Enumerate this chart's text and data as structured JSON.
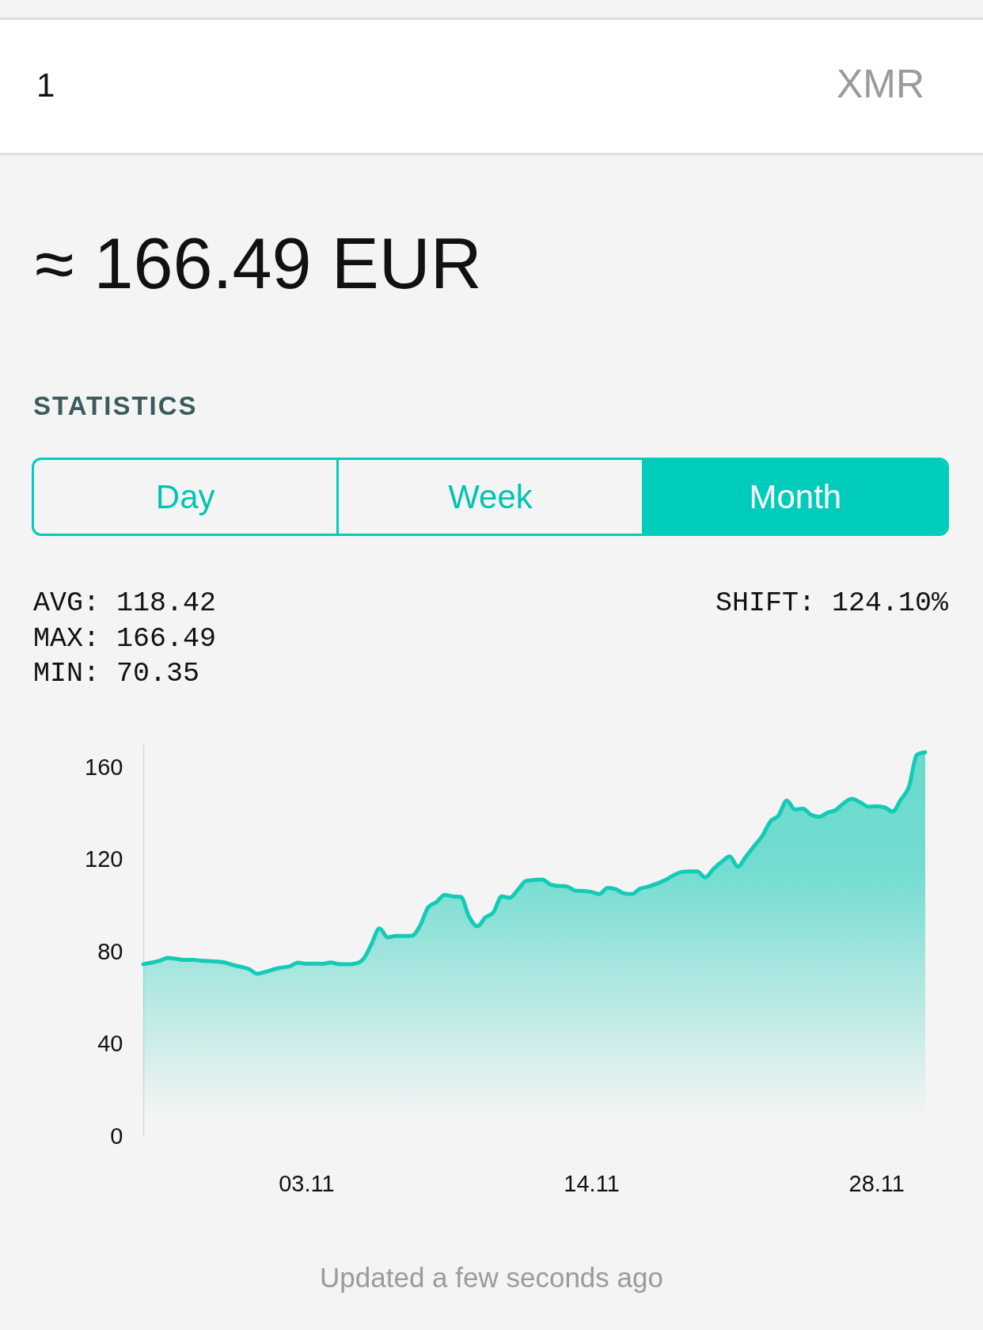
{
  "chart_data": {
    "type": "area",
    "title": "≈ 166.49 EUR",
    "subtitle": "STATISTICS",
    "categories": [
      null,
      null,
      null,
      null,
      null,
      null,
      null,
      null,
      null,
      null,
      null,
      null,
      null,
      null,
      null,
      null,
      null,
      null,
      null,
      null,
      "03.11",
      null,
      null,
      null,
      null,
      null,
      null,
      null,
      null,
      null,
      null,
      null,
      null,
      null,
      null,
      null,
      null,
      null,
      null,
      null,
      null,
      null,
      null,
      null,
      null,
      null,
      null,
      null,
      null,
      null,
      null,
      null,
      null,
      null,
      null,
      "14.11",
      null,
      null,
      null,
      null,
      null,
      null,
      null,
      null,
      null,
      null,
      null,
      null,
      null,
      null,
      null,
      null,
      null,
      null,
      null,
      null,
      null,
      null,
      null,
      null,
      null,
      null,
      null,
      null,
      null,
      null,
      null,
      null,
      null,
      null,
      "28.11",
      null,
      null,
      null,
      null,
      null,
      null
    ],
    "series": [
      {
        "color": "#14cbb6",
        "values": [
          74.5,
          75.2,
          76.0,
          77.3,
          76.9,
          76.4,
          76.5,
          76.1,
          75.9,
          75.7,
          75.3,
          74.2,
          73.4,
          72.4,
          70.4,
          71.2,
          72.3,
          73.1,
          73.6,
          75.2,
          74.7,
          74.8,
          74.7,
          75.3,
          74.6,
          74.5,
          74.8,
          76.7,
          83.1,
          90.1,
          86.2,
          86.8,
          86.8,
          86.9,
          91.4,
          99.3,
          101.5,
          104.6,
          104.0,
          103.7,
          95.2,
          91.0,
          94.8,
          97.1,
          104.0,
          103.4,
          106.9,
          110.7,
          111.1,
          111.3,
          109.1,
          108.5,
          108.3,
          106.5,
          106.3,
          105.9,
          105.0,
          107.7,
          107.1,
          105.3,
          105.0,
          107.3,
          108.2,
          109.4,
          110.9,
          112.9,
          114.5,
          114.8,
          114.8,
          112.2,
          115.9,
          118.9,
          121.3,
          116.8,
          121.3,
          125.8,
          130.2,
          136.5,
          139.1,
          145.5,
          141.7,
          142.0,
          139.3,
          138.5,
          140.3,
          141.4,
          144.4,
          146.3,
          144.8,
          142.9,
          143.0,
          142.6,
          140.8,
          145.9,
          151.5,
          165.5,
          166.5
        ]
      }
    ],
    "ylim": [
      0,
      170
    ],
    "yticks": [
      0,
      40,
      80,
      120,
      160
    ],
    "annotations": [
      "1",
      "XMR",
      "Day",
      "Week",
      "Month",
      "AVG: 118.42",
      "MAX: 166.49",
      "MIN: 70.35",
      "SHIFT: 124.10%",
      "Updated a few seconds ago"
    ]
  }
}
